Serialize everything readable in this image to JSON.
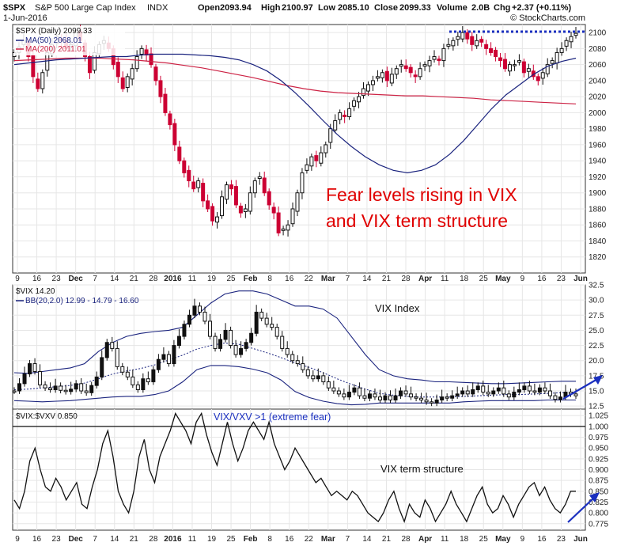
{
  "header": {
    "symbol": "$SPX",
    "name": "S&P 500 Large Cap Index",
    "exchange": "INDX",
    "date": "1-Jun-2016",
    "open_label": "Open",
    "open": "2093.94",
    "high_label": "High",
    "high": "2100.97",
    "low_label": "Low",
    "low": "2085.10",
    "close_label": "Close",
    "close": "2099.33",
    "volume_label": "Volume",
    "volume": "2.0B",
    "chg_label": "Chg",
    "chg": "+2.37 (+0.11%)",
    "watermark": "© StockCharts.com"
  },
  "colors": {
    "up": "#111111",
    "down": "#cc0033",
    "ma50": "#1a237e",
    "ma200": "#cc2244",
    "bollinger": "#1a237e",
    "annotation_red": "#e00000",
    "annotation_blue": "#1a2fbf",
    "grid": "#e6e6e6"
  },
  "x_axis": {
    "labels": [
      "9",
      "16",
      "23",
      "Dec",
      "7",
      "14",
      "21",
      "28",
      "2016",
      "11",
      "19",
      "25",
      "Feb",
      "8",
      "16",
      "22",
      "Mar",
      "7",
      "14",
      "21",
      "28",
      "Apr",
      "11",
      "18",
      "25",
      "May",
      "9",
      "16",
      "23",
      "Jun"
    ],
    "bold": [
      "Dec",
      "2016",
      "Feb",
      "Mar",
      "Apr",
      "May",
      "Jun"
    ]
  },
  "chart_data": [
    {
      "type": "candlestick",
      "panel": "price",
      "series_label": "$SPX (Daily) 2099.33",
      "ma50_label": "MA(50) 2068.01",
      "ma200_label": "MA(200) 2011.01",
      "ylim": [
        1800,
        2110
      ],
      "yticks": [
        1820,
        1840,
        1860,
        1880,
        1900,
        1920,
        1940,
        1960,
        1980,
        2000,
        2020,
        2040,
        2060,
        2080,
        2100
      ],
      "close": [
        2075,
        2082,
        2090,
        2070,
        2045,
        2030,
        2050,
        2075,
        2085,
        2095,
        2090,
        2080,
        2085,
        2100,
        2090,
        2070,
        2050,
        2075,
        2085,
        2090,
        2080,
        2060,
        2045,
        2030,
        2045,
        2055,
        2070,
        2080,
        2072,
        2060,
        2040,
        2020,
        2000,
        1985,
        1960,
        1940,
        1925,
        1915,
        1905,
        1915,
        1890,
        1880,
        1865,
        1870,
        1895,
        1910,
        1905,
        1885,
        1875,
        1880,
        1900,
        1915,
        1920,
        1900,
        1885,
        1875,
        1850,
        1855,
        1860,
        1880,
        1900,
        1925,
        1935,
        1945,
        1940,
        1950,
        1960,
        1980,
        1990,
        2000,
        1995,
        2005,
        2015,
        2020,
        2030,
        2035,
        2040,
        2045,
        2050,
        2040,
        2048,
        2055,
        2060,
        2055,
        2050,
        2045,
        2055,
        2060,
        2065,
        2070,
        2065,
        2080,
        2085,
        2090,
        2095,
        2100,
        2092,
        2085,
        2090,
        2088,
        2080,
        2075,
        2070,
        2065,
        2055,
        2060,
        2060,
        2065,
        2050,
        2055,
        2045,
        2040,
        2050,
        2060,
        2065,
        2075,
        2080,
        2090,
        2095,
        2099
      ],
      "ma50": [
        2060,
        2062,
        2064,
        2066,
        2067,
        2068,
        2069,
        2070,
        2070,
        2072,
        2073,
        2073,
        2073,
        2072,
        2071,
        2069,
        2066,
        2060,
        2052,
        2040,
        2025,
        2008,
        1990,
        1973,
        1958,
        1945,
        1935,
        1928,
        1925,
        1928,
        1935,
        1948,
        1965,
        1985,
        2005,
        2022,
        2035,
        2048,
        2058,
        2064,
        2068
      ],
      "ma200": [
        2065,
        2066,
        2067,
        2068,
        2068,
        2068,
        2067,
        2066,
        2064,
        2062,
        2059,
        2056,
        2052,
        2048,
        2044,
        2039,
        2034,
        2030,
        2027,
        2025,
        2024,
        2023,
        2022,
        2021,
        2021,
        2020,
        2019,
        2018,
        2016,
        2015,
        2014,
        2013,
        2012,
        2011
      ]
    },
    {
      "type": "line",
      "panel": "vix",
      "series_label": "$VIX 14.20",
      "bb_label": "BB(20,2.0) 12.99 - 14.79 - 16.60",
      "title": "VIX Index",
      "ylim": [
        12.0,
        32.5
      ],
      "yticks": [
        12.5,
        15.0,
        17.5,
        20.0,
        22.5,
        25.0,
        27.5,
        30.0,
        32.5
      ],
      "values": [
        15.0,
        16.2,
        17.8,
        19.5,
        18.2,
        16.0,
        15.5,
        15.2,
        15.8,
        15.1,
        14.9,
        15.3,
        16.2,
        15.0,
        14.7,
        15.9,
        17.3,
        20.5,
        23.0,
        22.0,
        19.0,
        18.1,
        17.3,
        16.0,
        15.2,
        17.0,
        16.5,
        18.5,
        20.2,
        21.0,
        19.5,
        22.5,
        24.0,
        26.0,
        27.5,
        29.0,
        28.0,
        26.5,
        24.0,
        22.0,
        23.5,
        25.0,
        22.5,
        21.0,
        22.0,
        23.0,
        24.5,
        28.0,
        27.0,
        26.0,
        25.5,
        24.0,
        22.0,
        21.0,
        20.0,
        19.5,
        18.5,
        17.5,
        17.0,
        17.5,
        16.5,
        15.5,
        15.0,
        14.5,
        14.0,
        14.8,
        15.5,
        14.2,
        13.8,
        14.5,
        14.0,
        13.5,
        14.2,
        13.5,
        14.2,
        15.0,
        14.5,
        14.0,
        13.8,
        13.5,
        13.2,
        13.0,
        13.5,
        14.0,
        13.8,
        14.2,
        14.5,
        15.0,
        14.5,
        15.2,
        15.8,
        14.8,
        14.5,
        15.0,
        15.5,
        14.5,
        14.0,
        14.8,
        15.2,
        15.8,
        15.0,
        14.8,
        15.5,
        15.0,
        14.2,
        13.6,
        14.0,
        14.8,
        14.5,
        14.2
      ],
      "bb_upper": [
        18.0,
        17.9,
        18.2,
        18.5,
        18.8,
        19.5,
        21.5,
        23.0,
        24.0,
        24.5,
        24.8,
        25.0,
        25.5,
        27.5,
        29.5,
        31.0,
        31.5,
        31.5,
        31.0,
        30.0,
        29.0,
        29.0,
        28.5,
        27.0,
        24.0,
        21.0,
        18.5,
        17.5,
        17.0,
        16.8,
        16.5,
        16.5,
        16.4,
        16.3,
        16.2,
        16.2,
        16.3,
        16.4,
        16.5,
        16.6,
        16.6
      ],
      "bb_mid": [
        15.2,
        15.3,
        15.5,
        15.7,
        15.9,
        16.3,
        17.0,
        17.8,
        18.3,
        18.7,
        19.3,
        20.1,
        20.9,
        21.9,
        22.5,
        22.9,
        22.7,
        22.0,
        21.3,
        20.5,
        19.6,
        18.9,
        18.0,
        17.0,
        16.1,
        15.3,
        14.6,
        14.3,
        14.1,
        14.0,
        14.0,
        14.0,
        14.1,
        14.2,
        14.3,
        14.4,
        14.4,
        14.5,
        14.6,
        14.7,
        14.8
      ],
      "bb_lower": [
        13.4,
        13.3,
        13.2,
        13.3,
        13.4,
        13.6,
        13.8,
        14.0,
        14.1,
        14.1,
        14.4,
        15.0,
        16.5,
        18.5,
        19.2,
        19.2,
        19.0,
        18.6,
        18.0,
        16.8,
        14.9,
        13.9,
        13.3,
        12.9,
        12.7,
        12.8,
        13.0,
        13.0,
        13.0,
        13.0,
        13.0,
        13.0,
        13.2,
        13.3,
        13.4,
        13.4,
        13.4,
        13.4,
        13.5,
        13.5,
        13.5
      ]
    },
    {
      "type": "line",
      "panel": "term",
      "series_label": "$VIX:$VXV 0.850",
      "title": "VIX term structure",
      "ylim": [
        0.76,
        1.04
      ],
      "yticks": [
        0.775,
        0.8,
        0.825,
        0.85,
        0.875,
        0.9,
        0.925,
        0.95,
        0.975,
        1.0,
        1.025
      ],
      "threshold": 1.0,
      "values": [
        0.83,
        0.81,
        0.85,
        0.92,
        0.95,
        0.9,
        0.86,
        0.85,
        0.88,
        0.86,
        0.83,
        0.85,
        0.87,
        0.82,
        0.81,
        0.86,
        0.9,
        0.96,
        0.99,
        0.93,
        0.85,
        0.82,
        0.8,
        0.85,
        0.93,
        0.97,
        0.9,
        0.87,
        0.93,
        0.96,
        0.99,
        1.03,
        1.01,
        0.99,
        0.96,
        1.01,
        1.03,
        0.98,
        0.94,
        0.91,
        0.96,
        1.01,
        0.96,
        0.92,
        0.95,
        0.99,
        1.01,
        0.99,
        0.97,
        1.01,
        0.96,
        0.93,
        0.9,
        0.92,
        0.95,
        0.93,
        0.91,
        0.89,
        0.87,
        0.88,
        0.86,
        0.84,
        0.85,
        0.84,
        0.83,
        0.85,
        0.84,
        0.82,
        0.8,
        0.79,
        0.78,
        0.8,
        0.83,
        0.85,
        0.81,
        0.78,
        0.82,
        0.8,
        0.79,
        0.83,
        0.81,
        0.78,
        0.8,
        0.82,
        0.85,
        0.82,
        0.8,
        0.78,
        0.81,
        0.84,
        0.86,
        0.82,
        0.8,
        0.81,
        0.84,
        0.82,
        0.79,
        0.82,
        0.84,
        0.86,
        0.87,
        0.84,
        0.86,
        0.83,
        0.81,
        0.8,
        0.82,
        0.85,
        0.85
      ],
      "threshold_label": "VIX/VXV >1 (extreme fear)"
    }
  ],
  "annotations": {
    "price_text_line1": "Fear levels rising in VIX",
    "price_text_line2": "and VIX term structure"
  }
}
